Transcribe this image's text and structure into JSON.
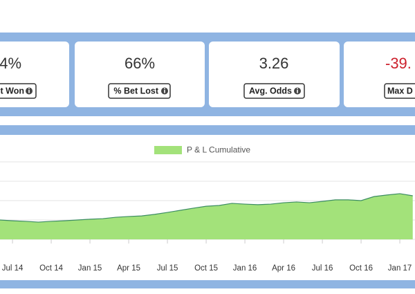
{
  "cards": [
    {
      "value": "4%",
      "label": "t Won",
      "color": "#333333"
    },
    {
      "value": "66%",
      "label": "% Bet Lost",
      "color": "#333333"
    },
    {
      "value": "3.26",
      "label": "Avg. Odds",
      "color": "#333333"
    },
    {
      "value": "-39.",
      "label": "Max D",
      "color": "#cc1f2b"
    }
  ],
  "chart_data": {
    "type": "area",
    "categories": [
      null,
      "Jul 14",
      null,
      null,
      "Oct 14",
      null,
      null,
      "Jan 15",
      null,
      null,
      "Apr 15",
      null,
      null,
      "Jul 15",
      null,
      null,
      "Oct 15",
      null,
      null,
      "Jan 16",
      null,
      null,
      "Apr 16",
      null,
      null,
      "Jul 16",
      null,
      null,
      "Oct 16",
      null,
      null,
      "Jan 17",
      null
    ],
    "series": [
      {
        "name": "P & L Cumulative",
        "color": "#a3e27a",
        "line_color": "#3b8c62",
        "values": [
          1.0,
          0.96,
          0.93,
          0.89,
          0.93,
          0.96,
          1.0,
          1.04,
          1.07,
          1.14,
          1.18,
          1.21,
          1.29,
          1.39,
          1.5,
          1.61,
          1.71,
          1.75,
          1.86,
          1.82,
          1.79,
          1.82,
          1.89,
          1.93,
          1.89,
          1.96,
          2.04,
          2.04,
          2.0,
          2.21,
          2.29,
          2.36,
          2.25
        ]
      }
    ],
    "ylim": [
      0,
      4
    ],
    "yticks": [
      0,
      1,
      2,
      3,
      4
    ],
    "grid": true,
    "legend": "top"
  }
}
